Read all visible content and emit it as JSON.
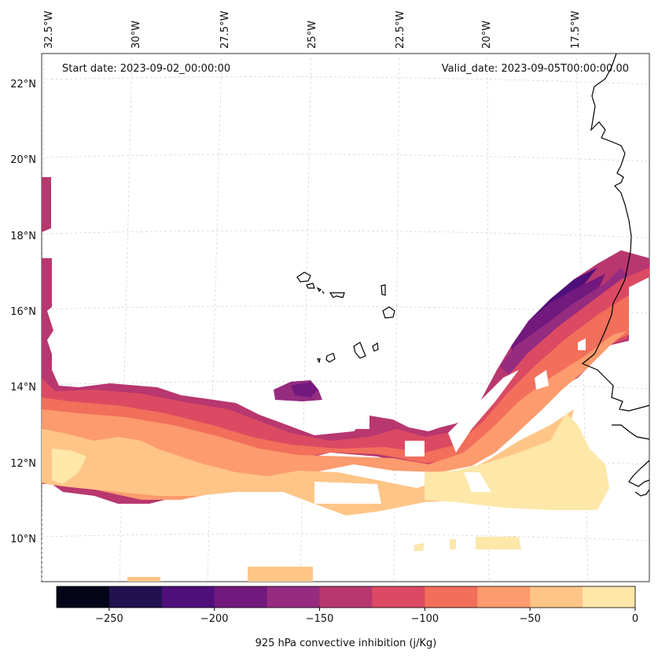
{
  "map": {
    "start_date": "Start date: 2023-09-02_00:00:00",
    "valid_date": "Valid_date: 2023-09-05T00:00:00.00",
    "longitude_labels": [
      "32.5°W",
      "30°W",
      "27.5°W",
      "25°W",
      "22.5°W",
      "20°W",
      "17.5°W"
    ],
    "latitude_labels": [
      "22°N",
      "20°N",
      "18°N",
      "16°N",
      "14°N",
      "12°N",
      "10°N"
    ]
  },
  "colorbar": {
    "label": "925 hPa convective inhibition (j/Kg)",
    "tick_labels": [
      "−250",
      "−200",
      "−150",
      "−100",
      "−50",
      "0"
    ],
    "range": [
      -275,
      0
    ],
    "levels": [
      -275,
      -250,
      -225,
      -200,
      -175,
      -150,
      -125,
      -100,
      -75,
      -50,
      -25,
      0
    ],
    "colors": [
      "#05051a",
      "#221150",
      "#4e0f7a",
      "#72197e",
      "#952c80",
      "#b8376f",
      "#db4a62",
      "#f16f5b",
      "#fc9b6e",
      "#fec587",
      "#fde7a9"
    ]
  },
  "colors": {
    "coastline": "#000000",
    "gridline": "#cccccc"
  }
}
